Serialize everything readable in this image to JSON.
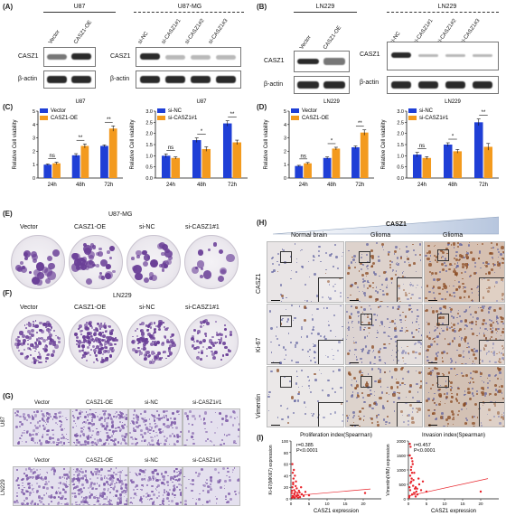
{
  "panels": {
    "A": {
      "label": "(A)",
      "blot1": {
        "header": "U87",
        "lanes": [
          "Vector",
          "CASZ1-OE"
        ],
        "rows": [
          "CASZ1",
          "β-actin"
        ]
      },
      "blot2": {
        "header": "U87-MG",
        "lanes": [
          "si-NC",
          "si-CASZ1#1",
          "si-CASZ1#2",
          "si-CASZ1#3"
        ],
        "rows": [
          "CASZ1",
          "β-actin"
        ]
      }
    },
    "B": {
      "label": "(B)",
      "blot1": {
        "header": "LN229",
        "lanes": [
          "Vector",
          "CASZ1-OE"
        ],
        "rows": [
          "CASZ1",
          "β-actin"
        ]
      },
      "blot2": {
        "header": "LN229",
        "lanes": [
          "si-NC",
          "si-CASZ1#1",
          "si-CASZ1#2",
          "si-CASZ1#3"
        ],
        "rows": [
          "CASZ1",
          "β-actin"
        ]
      }
    },
    "C": {
      "label": "(C)"
    },
    "D": {
      "label": "(D)"
    },
    "E": {
      "label": "(E)",
      "title": "U87-MG",
      "dishes": [
        "Vector",
        "CASZ1-OE",
        "si-NC",
        "si-CASZ1#1"
      ]
    },
    "F": {
      "label": "(F)",
      "title": "LN229",
      "dishes": [
        "Vector",
        "CASZ1-OE",
        "si-NC",
        "si-CASZ1#1"
      ]
    },
    "G": {
      "label": "(G)",
      "cols": [
        "Vector",
        "CASZ1-OE",
        "si-NC",
        "si-CASZ1#1"
      ],
      "rows": [
        "U87",
        "LN229"
      ]
    },
    "H": {
      "label": "(H)",
      "gradient_title": "CASZ1",
      "cols": [
        "Normal brain",
        "Glioma",
        "Glioma"
      ],
      "rows": [
        "CASZ1",
        "Ki-67",
        "Vimentin"
      ]
    },
    "I": {
      "label": "(I)"
    }
  },
  "colors": {
    "series_a": "#1f3fd6",
    "series_b": "#f39a1e",
    "scatter": "#e8232a",
    "stain": "#6a3f97"
  },
  "chart_data": [
    {
      "id": "C-left",
      "type": "bar",
      "title": "U87",
      "categories": [
        "24h",
        "48h",
        "72h"
      ],
      "series": [
        {
          "name": "Vector",
          "values": [
            1.0,
            1.7,
            2.4
          ],
          "err": [
            0.05,
            0.12,
            0.08
          ]
        },
        {
          "name": "CASZ1-OE",
          "values": [
            1.1,
            2.4,
            3.7
          ],
          "err": [
            0.08,
            0.15,
            0.2
          ]
        }
      ],
      "significance": [
        "ns",
        "**",
        "**"
      ],
      "ylabel": "Relative Cell viability",
      "ylim": [
        0,
        5
      ],
      "yticks": [
        0,
        1,
        2,
        3,
        4,
        5
      ]
    },
    {
      "id": "C-right",
      "type": "bar",
      "title": "U87",
      "categories": [
        "24h",
        "48h",
        "72h"
      ],
      "series": [
        {
          "name": "si-NC",
          "values": [
            1.0,
            1.7,
            2.45
          ],
          "err": [
            0.08,
            0.1,
            0.12
          ]
        },
        {
          "name": "si-CASZ1#1",
          "values": [
            0.9,
            1.3,
            1.6
          ],
          "err": [
            0.05,
            0.1,
            0.1
          ]
        }
      ],
      "significance": [
        "ns",
        "*",
        "**"
      ],
      "ylabel": "Relative Cell viability",
      "ylim": [
        0,
        3
      ],
      "yticks": [
        0.0,
        0.5,
        1.0,
        1.5,
        2.0,
        2.5,
        3.0
      ]
    },
    {
      "id": "D-left",
      "type": "bar",
      "title": "LN229",
      "categories": [
        "24h",
        "48h",
        "72h"
      ],
      "series": [
        {
          "name": "Vector",
          "values": [
            0.9,
            1.5,
            2.3
          ],
          "err": [
            0.05,
            0.08,
            0.1
          ]
        },
        {
          "name": "CASZ1-OE",
          "values": [
            1.1,
            2.2,
            3.4
          ],
          "err": [
            0.06,
            0.1,
            0.2
          ]
        }
      ],
      "significance": [
        "ns",
        "*",
        "**"
      ],
      "ylabel": "Relative Cell viability",
      "ylim": [
        0,
        5
      ],
      "yticks": [
        0,
        1,
        2,
        3,
        4,
        5
      ]
    },
    {
      "id": "D-right",
      "type": "bar",
      "title": "LN229",
      "categories": [
        "24h",
        "48h",
        "72h"
      ],
      "series": [
        {
          "name": "si-NC",
          "values": [
            1.05,
            1.5,
            2.5
          ],
          "err": [
            0.1,
            0.08,
            0.15
          ]
        },
        {
          "name": "si-CASZ1#1",
          "values": [
            0.9,
            1.2,
            1.4
          ],
          "err": [
            0.06,
            0.08,
            0.15
          ]
        }
      ],
      "significance": [
        "ns",
        "*",
        "**"
      ],
      "ylabel": "Relative Cell viability",
      "ylim": [
        0,
        3
      ],
      "yticks": [
        0.0,
        0.5,
        1.0,
        1.5,
        2.0,
        2.5,
        3.0
      ]
    },
    {
      "id": "I-left",
      "type": "scatter",
      "title": "Proliferation index(Spearman)",
      "annotation": [
        "r=0.385",
        "P<0.0001"
      ],
      "xlabel": "CASZ1 expression",
      "ylabel": "Ki-67(MKI67) expression",
      "xlim": [
        0,
        25
      ],
      "ylim": [
        0,
        100
      ],
      "xticks": [
        0,
        5,
        10,
        15,
        20
      ],
      "yticks": [
        0,
        20,
        40,
        60,
        80,
        100
      ],
      "fit": [
        [
          0,
          5
        ],
        [
          22,
          17
        ]
      ],
      "points": [
        [
          0.3,
          2
        ],
        [
          0.5,
          5
        ],
        [
          0.8,
          3
        ],
        [
          1.0,
          8
        ],
        [
          1.2,
          12
        ],
        [
          0.4,
          20
        ],
        [
          0.6,
          28
        ],
        [
          1.5,
          4
        ],
        [
          2.0,
          6
        ],
        [
          0.9,
          15
        ],
        [
          1.8,
          10
        ],
        [
          2.5,
          3
        ],
        [
          3.0,
          8
        ],
        [
          0.7,
          35
        ],
        [
          1.1,
          40
        ],
        [
          0.5,
          45
        ],
        [
          1.3,
          22
        ],
        [
          2.2,
          14
        ],
        [
          0.2,
          10
        ],
        [
          3.5,
          5
        ],
        [
          4.0,
          12
        ],
        [
          1.6,
          18
        ],
        [
          0.8,
          50
        ],
        [
          1.0,
          2
        ],
        [
          2.8,
          20
        ],
        [
          5.0,
          6
        ],
        [
          0.4,
          60
        ],
        [
          0.6,
          25
        ],
        [
          1.4,
          30
        ],
        [
          2.0,
          2
        ],
        [
          20.5,
          10
        ],
        [
          0.3,
          14
        ],
        [
          1.7,
          6
        ],
        [
          0.9,
          9
        ],
        [
          2.4,
          11
        ]
      ]
    },
    {
      "id": "I-right",
      "type": "scatter",
      "title": "Invasion index(Spearman)",
      "annotation": [
        "r=0.457",
        "P<0.0001"
      ],
      "xlabel": "CASZ1 expression",
      "ylabel": "Vimentin(VIM) expression",
      "xlim": [
        0,
        25
      ],
      "ylim": [
        0,
        2000
      ],
      "xticks": [
        0,
        5,
        10,
        15,
        20
      ],
      "yticks": [
        0,
        500,
        1000,
        1500,
        2000
      ],
      "fit": [
        [
          0,
          100
        ],
        [
          22,
          700
        ]
      ],
      "points": [
        [
          0.3,
          100
        ],
        [
          0.5,
          300
        ],
        [
          0.8,
          600
        ],
        [
          1.0,
          900
        ],
        [
          1.2,
          1200
        ],
        [
          0.4,
          1500
        ],
        [
          0.6,
          1800
        ],
        [
          1.5,
          200
        ],
        [
          2.0,
          400
        ],
        [
          0.9,
          700
        ],
        [
          1.8,
          350
        ],
        [
          2.5,
          150
        ],
        [
          3.0,
          500
        ],
        [
          0.7,
          1000
        ],
        [
          1.1,
          1300
        ],
        [
          0.5,
          800
        ],
        [
          1.3,
          450
        ],
        [
          2.2,
          250
        ],
        [
          0.2,
          50
        ],
        [
          3.5,
          300
        ],
        [
          4.0,
          600
        ],
        [
          1.6,
          900
        ],
        [
          0.8,
          1100
        ],
        [
          1.0,
          150
        ],
        [
          2.8,
          700
        ],
        [
          5.0,
          250
        ],
        [
          0.4,
          1900
        ],
        [
          0.6,
          550
        ],
        [
          1.4,
          650
        ],
        [
          2.0,
          80
        ],
        [
          20.0,
          250
        ],
        [
          0.3,
          400
        ],
        [
          1.7,
          200
        ],
        [
          0.9,
          1400
        ],
        [
          2.4,
          350
        ]
      ]
    }
  ]
}
